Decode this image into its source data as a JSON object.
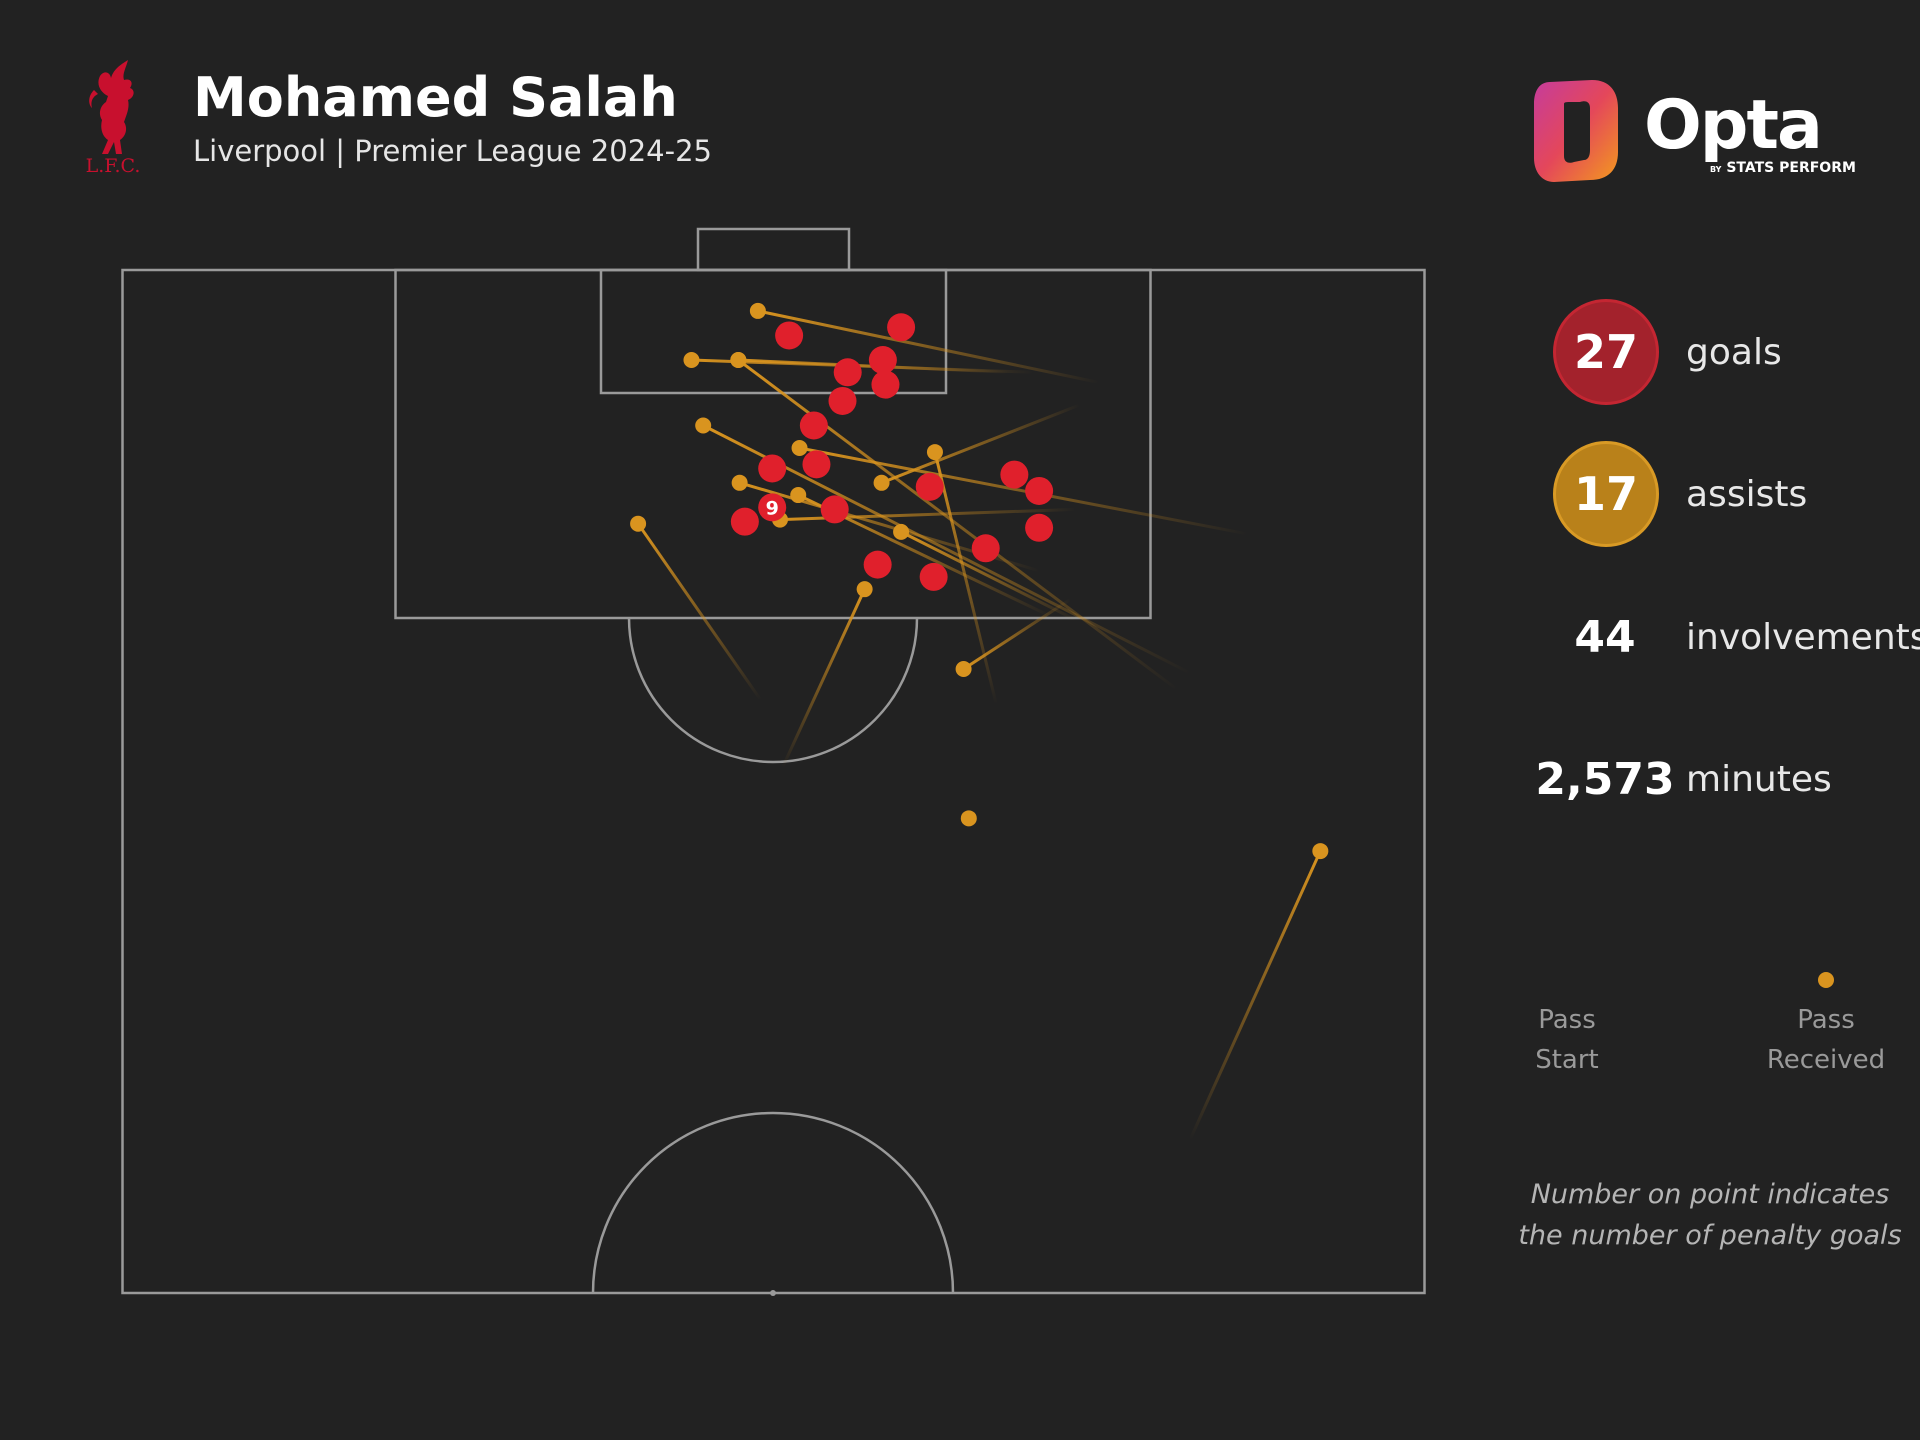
{
  "header": {
    "title": "Mohamed Salah",
    "subtitle": "Liverpool | Premier League 2024-25",
    "crest_text": "L.F.C.",
    "brand_name": "Opta",
    "brand_sub_small": "BY",
    "brand_sub": "STATS PERFORM"
  },
  "stats": {
    "goals_value": "27",
    "goals_label": "goals",
    "assists_value": "17",
    "assists_label": "assists",
    "involvements_value": "44",
    "involvements_label": "involvements",
    "minutes_value": "2,573",
    "minutes_label": "minutes"
  },
  "legend": {
    "start_label_1": "Pass",
    "start_label_2": "Start",
    "end_label_1": "Pass",
    "end_label_2": "Received"
  },
  "note": {
    "line1": "Number on point indicates",
    "line2": "the number of penalty goals"
  },
  "colors": {
    "background": "#222222",
    "pitch_lines": "#9a9a9a",
    "goal": "#e0202c",
    "assist": "#d9941f",
    "goals_bubble": "#a3222c",
    "assists_bubble": "#b9811a"
  },
  "chart_data": {
    "type": "scatter",
    "description": "Half-pitch map of goals and assists; pitch coordinates: x 0-100 across width, y 0-50 from goal line to halfway line",
    "series": [
      {
        "name": "goals",
        "points": [
          {
            "x": 51.2,
            "y": 3.2
          },
          {
            "x": 59.8,
            "y": 2.8
          },
          {
            "x": 55.7,
            "y": 5.0
          },
          {
            "x": 58.4,
            "y": 4.4
          },
          {
            "x": 58.6,
            "y": 5.6
          },
          {
            "x": 55.3,
            "y": 6.4
          },
          {
            "x": 53.1,
            "y": 7.6
          },
          {
            "x": 49.9,
            "y": 9.7
          },
          {
            "x": 53.3,
            "y": 9.5
          },
          {
            "x": 62.0,
            "y": 10.6
          },
          {
            "x": 68.5,
            "y": 10.0
          },
          {
            "x": 70.4,
            "y": 10.8
          },
          {
            "x": 49.9,
            "y": 11.6,
            "label": "9"
          },
          {
            "x": 47.8,
            "y": 12.3
          },
          {
            "x": 54.7,
            "y": 11.7
          },
          {
            "x": 70.4,
            "y": 12.6
          },
          {
            "x": 66.3,
            "y": 13.6
          },
          {
            "x": 58.0,
            "y": 14.4
          },
          {
            "x": 62.3,
            "y": 15.0
          }
        ]
      },
      {
        "name": "assists",
        "passes": [
          {
            "start_x": 75.0,
            "start_y": 5.5,
            "end_x": 48.8,
            "end_y": 2.0
          },
          {
            "start_x": 70.0,
            "start_y": 5.0,
            "end_x": 43.7,
            "end_y": 4.4
          },
          {
            "start_x": 68.0,
            "start_y": 5.0,
            "end_x": 47.3,
            "end_y": 4.4
          },
          {
            "start_x": 81.0,
            "start_y": 20.5,
            "end_x": 47.3,
            "end_y": 4.4
          },
          {
            "start_x": 73.5,
            "start_y": 6.6,
            "end_x": 58.3,
            "end_y": 10.4
          },
          {
            "start_x": 86.4,
            "start_y": 12.9,
            "end_x": 52.0,
            "end_y": 8.7
          },
          {
            "start_x": 82.0,
            "start_y": 19.7,
            "end_x": 44.6,
            "end_y": 7.6
          },
          {
            "start_x": 70.4,
            "start_y": 14.7,
            "end_x": 47.4,
            "end_y": 10.4
          },
          {
            "start_x": 67.1,
            "start_y": 21.2,
            "end_x": 62.4,
            "end_y": 8.9
          },
          {
            "start_x": 73.2,
            "start_y": 17.1,
            "end_x": 59.8,
            "end_y": 12.8
          },
          {
            "start_x": 71.2,
            "start_y": 16.9,
            "end_x": 51.9,
            "end_y": 11.0
          },
          {
            "start_x": 73.2,
            "start_y": 11.7,
            "end_x": 50.5,
            "end_y": 12.2
          },
          {
            "start_x": 49.0,
            "start_y": 21.0,
            "end_x": 39.6,
            "end_y": 12.4
          },
          {
            "start_x": 50.7,
            "start_y": 24.3,
            "end_x": 57.0,
            "end_y": 15.6
          },
          {
            "start_x": 72.8,
            "start_y": 16.1,
            "end_x": 64.6,
            "end_y": 19.5
          },
          {
            "start_x": 65.0,
            "start_y": 26.8,
            "end_x": 65.0,
            "end_y": 26.8
          },
          {
            "start_x": 82.0,
            "start_y": 42.5,
            "end_x": 92.0,
            "end_y": 28.4
          }
        ]
      }
    ]
  }
}
